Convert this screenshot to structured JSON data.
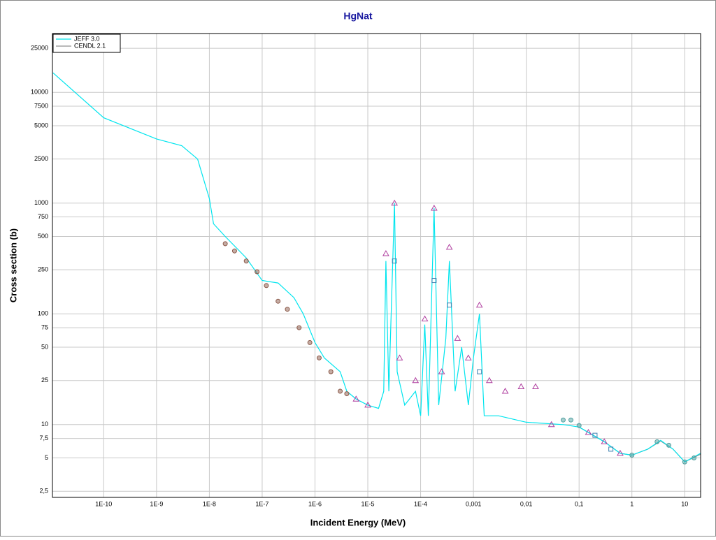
{
  "chart_data": {
    "type": "line",
    "title": "HgNat",
    "x_label": "Incident Energy (MeV)",
    "y_label": "Cross section (b)",
    "x_log": true,
    "y_log": true,
    "grid": true,
    "legend": "top-left",
    "xlim": [
      1.07e-11,
      20
    ],
    "ylim": [
      2.2,
      34000
    ],
    "xticks": [
      {
        "value": 1e-10,
        "label": "1E-10"
      },
      {
        "value": 1e-09,
        "label": "1E-9"
      },
      {
        "value": 1e-08,
        "label": "1E-8"
      },
      {
        "value": 1e-07,
        "label": "1E-7"
      },
      {
        "value": 1e-06,
        "label": "1E-6"
      },
      {
        "value": 1e-05,
        "label": "1E-5"
      },
      {
        "value": 0.0001,
        "label": "1E-4"
      },
      {
        "value": 0.001,
        "label": "0,001"
      },
      {
        "value": 0.01,
        "label": "0,01"
      },
      {
        "value": 0.1,
        "label": "0,1"
      },
      1,
      10
    ],
    "yticks": [
      {
        "value": 2.5,
        "label": "2,5"
      },
      5,
      {
        "value": 7.5,
        "label": "7,5"
      },
      10,
      25,
      50,
      75,
      100,
      250,
      500,
      750,
      1000,
      2500,
      5000,
      7500,
      10000,
      25000
    ],
    "series": [
      {
        "name": "JEFF 3.0",
        "color": "#00e5ee",
        "x": [
          1.1e-11,
          1e-10,
          1e-09,
          3e-09,
          6e-09,
          1e-08,
          1.2e-08,
          2e-08,
          5e-08,
          1e-07,
          2e-07,
          4e-07,
          6e-07,
          1e-06,
          1.5e-06,
          3e-06,
          4e-06,
          6e-06,
          1e-05,
          1.6e-05,
          2e-05,
          2.2e-05,
          2.5e-05,
          3.2e-05,
          3.6e-05,
          5e-05,
          8e-05,
          0.0001,
          0.00012,
          0.00014,
          0.00018,
          0.00022,
          0.0003,
          0.00035,
          0.00045,
          0.0006,
          0.0008,
          0.001,
          0.0013,
          0.0016,
          0.003,
          0.01,
          0.05,
          0.1,
          0.3,
          0.6,
          1,
          2,
          3.5,
          6,
          10,
          20
        ],
        "y": [
          15000,
          5900,
          3800,
          3300,
          2500,
          1100,
          650,
          500,
          320,
          200,
          190,
          140,
          100,
          55,
          40,
          30,
          20,
          17,
          15,
          14,
          20,
          300,
          20,
          1000,
          30,
          15,
          20,
          12,
          80,
          12,
          900,
          15,
          60,
          300,
          20,
          50,
          15,
          40,
          100,
          12,
          12,
          10.5,
          10,
          9.5,
          7,
          5.5,
          5.3,
          6,
          7.2,
          6,
          4.6,
          5.5
        ]
      },
      {
        "name": "CENDL 2.1",
        "color": "#909090",
        "x": [
          0.1,
          0.3,
          0.6,
          1,
          2,
          3.5,
          6,
          10,
          20
        ],
        "y": [
          9.5,
          7,
          5.5,
          5.3,
          6,
          7.1,
          6,
          4.6,
          5.4
        ]
      }
    ],
    "scatter_points": [
      {
        "color": "#8b5a4a",
        "marker": "circle",
        "x": [
          2e-08,
          3e-08,
          5e-08,
          8e-08,
          1.2e-07,
          2e-07,
          3e-07,
          5e-07,
          8e-07,
          1.2e-06,
          2e-06,
          3e-06,
          4e-06
        ],
        "y": [
          430,
          370,
          300,
          240,
          180,
          130,
          110,
          75,
          55,
          40,
          30,
          20,
          19
        ]
      },
      {
        "color": "#b040a0",
        "marker": "triangle",
        "x": [
          6e-06,
          1e-05,
          2.2e-05,
          3.2e-05,
          4e-05,
          8e-05,
          0.00012,
          0.00018,
          0.00025,
          0.00035,
          0.0005,
          0.0008,
          0.0013,
          0.002,
          0.004,
          0.008,
          0.015,
          0.03,
          0.15,
          0.3,
          0.6
        ],
        "y": [
          17,
          15,
          350,
          1000,
          40,
          25,
          90,
          900,
          30,
          400,
          60,
          40,
          120,
          25,
          20,
          22,
          22,
          10,
          8.5,
          7,
          5.5
        ]
      },
      {
        "color": "#50a0a0",
        "marker": "circle",
        "x": [
          0.05,
          0.07,
          0.1,
          1,
          3,
          5,
          10,
          15
        ],
        "y": [
          11,
          11,
          9.8,
          5.3,
          7,
          6.5,
          4.6,
          5
        ]
      },
      {
        "color": "#4080b0",
        "marker": "square",
        "x": [
          3.2e-05,
          0.00018,
          0.00035,
          0.0013,
          0.2,
          0.4
        ],
        "y": [
          300,
          200,
          120,
          30,
          8,
          6
        ]
      }
    ]
  }
}
